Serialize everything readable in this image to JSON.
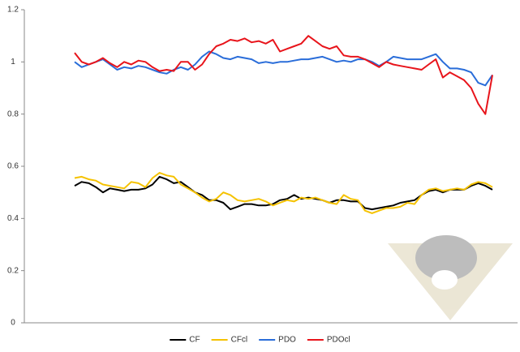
{
  "chart_data": {
    "type": "line",
    "categories": [
      null,
      null,
      null,
      null,
      null,
      null,
      null,
      null,
      null,
      null,
      null,
      null,
      null,
      null,
      null,
      null,
      null,
      null,
      null,
      null,
      null,
      null,
      null,
      null,
      null,
      null,
      null,
      null,
      null,
      null,
      null,
      null,
      null,
      null,
      null,
      null,
      null,
      null,
      null,
      null,
      null,
      null,
      null,
      null,
      null,
      null,
      null,
      null,
      null,
      null,
      null,
      null,
      null,
      null,
      null,
      null,
      null,
      null,
      null,
      null
    ],
    "series": [
      {
        "name": "CF",
        "color": "#000000",
        "values": [
          0.525,
          0.54,
          0.535,
          0.52,
          0.5,
          0.515,
          0.51,
          0.505,
          0.51,
          0.51,
          0.515,
          0.53,
          0.56,
          0.55,
          0.535,
          0.54,
          0.52,
          0.5,
          0.49,
          0.47,
          0.47,
          0.46,
          0.435,
          0.445,
          0.455,
          0.455,
          0.45,
          0.45,
          0.455,
          0.47,
          0.475,
          0.49,
          0.475,
          0.48,
          0.475,
          0.47,
          0.46,
          0.47,
          0.47,
          0.465,
          0.465,
          0.44,
          0.435,
          0.44,
          0.445,
          0.45,
          0.46,
          0.465,
          0.47,
          0.49,
          0.505,
          0.51,
          0.5,
          0.51,
          0.51,
          0.51,
          0.525,
          0.535,
          0.525,
          0.51
        ]
      },
      {
        "name": "CFcl",
        "color": "#f5c200",
        "values": [
          0.555,
          0.56,
          0.55,
          0.545,
          0.53,
          0.525,
          0.52,
          0.515,
          0.54,
          0.535,
          0.52,
          0.555,
          0.575,
          0.565,
          0.56,
          0.53,
          0.515,
          0.5,
          0.48,
          0.465,
          0.475,
          0.5,
          0.49,
          0.47,
          0.465,
          0.47,
          0.475,
          0.465,
          0.45,
          0.46,
          0.47,
          0.465,
          0.48,
          0.475,
          0.48,
          0.47,
          0.46,
          0.455,
          0.49,
          0.475,
          0.47,
          0.43,
          0.42,
          0.43,
          0.44,
          0.44,
          0.445,
          0.46,
          0.455,
          0.49,
          0.51,
          0.515,
          0.505,
          0.51,
          0.515,
          0.51,
          0.53,
          0.54,
          0.535,
          0.52
        ]
      },
      {
        "name": "PDO",
        "color": "#2a6dd9",
        "values": [
          1.0,
          0.98,
          0.99,
          1.0,
          1.01,
          0.99,
          0.97,
          0.98,
          0.975,
          0.985,
          0.98,
          0.97,
          0.96,
          0.955,
          0.97,
          0.98,
          0.97,
          0.99,
          1.02,
          1.04,
          1.03,
          1.015,
          1.01,
          1.02,
          1.015,
          1.01,
          0.995,
          1.0,
          0.995,
          1.0,
          1.0,
          1.005,
          1.01,
          1.01,
          1.015,
          1.02,
          1.01,
          1.0,
          1.005,
          1.0,
          1.01,
          1.01,
          1.0,
          0.985,
          1.0,
          1.02,
          1.015,
          1.01,
          1.01,
          1.01,
          1.02,
          1.03,
          1.0,
          0.975,
          0.975,
          0.97,
          0.96,
          0.92,
          0.91,
          0.95
        ]
      },
      {
        "name": "PDOcl",
        "color": "#e8141b",
        "values": [
          1.035,
          1.0,
          0.99,
          1.0,
          1.015,
          0.995,
          0.98,
          1.0,
          0.99,
          1.005,
          1.0,
          0.98,
          0.965,
          0.97,
          0.965,
          1.0,
          1.0,
          0.97,
          0.99,
          1.03,
          1.06,
          1.07,
          1.085,
          1.08,
          1.09,
          1.075,
          1.08,
          1.07,
          1.085,
          1.04,
          1.05,
          1.06,
          1.07,
          1.1,
          1.08,
          1.06,
          1.05,
          1.06,
          1.025,
          1.02,
          1.02,
          1.01,
          0.995,
          0.98,
          1.0,
          0.99,
          0.985,
          0.98,
          0.975,
          0.97,
          0.99,
          1.01,
          0.94,
          0.96,
          0.945,
          0.93,
          0.9,
          0.84,
          0.8,
          0.95
        ]
      }
    ],
    "ylim": [
      0,
      1.2
    ],
    "yticks": [
      0,
      0.2,
      0.4,
      0.6,
      0.8,
      1,
      1.2
    ],
    "grid": false,
    "legend": "bottom"
  }
}
